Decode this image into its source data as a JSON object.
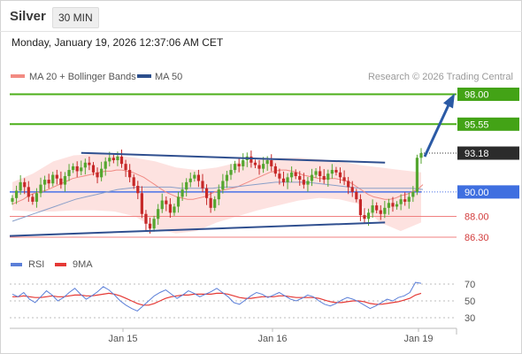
{
  "header": {
    "symbol": "Silver",
    "timeframe": "30 MIN",
    "timestamp": "Monday, January 19, 2026 12:37:06 AM CET"
  },
  "legend": {
    "ma20_label": "MA 20 + Bollinger Bands",
    "ma50_label": "MA 50",
    "ma20_color": "#f28b82",
    "ma50_color": "#2c4f8c",
    "credit": "Research © 2026 Trading Central"
  },
  "rsi_legend": {
    "rsi_label": "RSI",
    "ma_label": "9MA",
    "rsi_color": "#5b7fd8",
    "ma_color": "#e53935"
  },
  "colors": {
    "up_candle": "#55a630",
    "down_candle": "#c62828",
    "resistance": "#4caf1a",
    "support": "#f08080",
    "pivot": "#4a72e8",
    "last_price": "#222222",
    "trendline": "#2f4f8f",
    "arrow": "#2b5aa5",
    "band_fill": "#fde2e0"
  },
  "chart_data": [
    {
      "type": "candlestick",
      "title": "Silver 30 MIN",
      "ylim": [
        84,
        99
      ],
      "x_tick_labels": [
        "Jan 15",
        "Jan 16",
        "Jan 19"
      ],
      "levels": [
        {
          "value": 98.0,
          "label": "98.00",
          "kind": "resistance"
        },
        {
          "value": 95.55,
          "label": "95.55",
          "kind": "resistance"
        },
        {
          "value": 93.18,
          "label": "93.18",
          "kind": "last"
        },
        {
          "value": 90.0,
          "label": "90.00",
          "kind": "pivot"
        },
        {
          "value": 88.0,
          "label": "88.00",
          "kind": "support"
        },
        {
          "value": 86.3,
          "label": "86.30",
          "kind": "support"
        }
      ],
      "close_series": [
        89.5,
        90.1,
        90.8,
        90.4,
        89.6,
        89.2,
        89.9,
        90.6,
        91.0,
        90.7,
        91.4,
        91.1,
        90.6,
        91.3,
        91.8,
        92.1,
        91.7,
        92.0,
        92.4,
        92.2,
        91.6,
        91.2,
        91.9,
        92.5,
        92.8,
        92.6,
        92.9,
        92.3,
        91.8,
        91.2,
        90.5,
        89.9,
        88.2,
        87.4,
        87.0,
        87.8,
        88.6,
        89.3,
        89.0,
        88.3,
        88.8,
        89.6,
        90.2,
        90.8,
        91.1,
        91.4,
        90.9,
        90.3,
        89.5,
        88.7,
        89.4,
        90.2,
        90.9,
        91.4,
        91.8,
        92.3,
        92.1,
        92.6,
        92.9,
        92.4,
        92.2,
        91.9,
        92.3,
        92.6,
        92.1,
        91.5,
        91.1,
        90.8,
        91.2,
        91.6,
        91.3,
        91.0,
        90.6,
        90.9,
        91.4,
        91.7,
        91.3,
        91.0,
        91.5,
        91.8,
        91.6,
        91.2,
        90.9,
        90.4,
        90.0,
        89.4,
        88.1,
        87.8,
        88.3,
        88.9,
        88.5,
        88.2,
        88.7,
        89.1,
        88.8,
        89.0,
        89.4,
        89.2,
        89.6,
        90.0,
        92.8,
        93.18
      ],
      "ma20": [
        89.0,
        89.2,
        89.4,
        89.7,
        89.9,
        90.0,
        90.1,
        90.3,
        90.5,
        90.7,
        90.9,
        91.1,
        91.2,
        91.3,
        91.4,
        91.5,
        91.6,
        91.7,
        91.7,
        91.8,
        91.8,
        91.7,
        91.6,
        91.4,
        91.2,
        90.9,
        90.6,
        90.3,
        90.0,
        89.8,
        89.6,
        89.5,
        89.4,
        89.4,
        89.5,
        89.6,
        89.8,
        90.0,
        90.1,
        90.2,
        90.3,
        90.4,
        90.6,
        90.8,
        91.0,
        91.2,
        91.4,
        91.6,
        91.7,
        91.8,
        91.8,
        91.7,
        91.6,
        91.4,
        91.3,
        91.2,
        91.1,
        91.1,
        91.1,
        91.1,
        91.0,
        90.9,
        90.7,
        90.4,
        90.1,
        89.8,
        89.6,
        89.5,
        89.4,
        89.4,
        89.5,
        89.7,
        89.8,
        90.0,
        90.2,
        90.6
      ],
      "ma50": [
        87.6,
        87.9,
        88.2,
        88.5,
        88.8,
        89.1,
        89.4,
        89.6,
        89.8,
        90.0,
        90.2,
        90.3,
        90.4,
        90.4,
        90.4,
        90.4,
        90.3,
        90.3,
        90.3,
        90.3,
        90.4,
        90.4,
        90.5,
        90.6,
        90.7,
        90.8,
        90.8,
        90.8,
        90.8,
        90.7,
        90.6,
        90.5,
        90.4,
        90.3,
        90.3,
        90.3,
        90.3,
        90.3,
        90.3,
        90.2
      ],
      "band_upper": [
        90.8,
        91.5,
        92.5,
        93.0,
        93.1,
        93.0,
        92.8,
        92.5,
        92.0,
        91.8,
        92.0,
        92.4,
        92.6,
        92.8,
        92.8,
        92.7,
        92.5,
        92.2,
        92.0,
        91.8,
        91.6
      ],
      "band_lower": [
        88.5,
        88.4,
        88.4,
        88.5,
        88.5,
        88.4,
        88.0,
        87.0,
        86.6,
        86.8,
        87.5,
        88.0,
        88.5,
        88.9,
        89.3,
        89.5,
        89.4,
        89.0,
        87.5,
        86.8,
        87.5
      ],
      "trendlines": [
        {
          "name": "upper channel",
          "points": [
            [
              0.16,
              93.2
            ],
            [
              0.84,
              92.4
            ]
          ]
        },
        {
          "name": "lower channel",
          "points": [
            [
              0.0,
              86.4
            ],
            [
              0.84,
              87.5
            ]
          ]
        }
      ],
      "forecast_arrow": {
        "from": 93.18,
        "to": 98.0
      }
    },
    {
      "type": "line",
      "title": "RSI",
      "ylim": [
        20,
        80
      ],
      "y_ticks": [
        70,
        50,
        30
      ],
      "rsi": [
        58,
        55,
        60,
        52,
        48,
        55,
        62,
        57,
        50,
        54,
        60,
        65,
        58,
        52,
        56,
        61,
        67,
        63,
        57,
        50,
        45,
        41,
        38,
        44,
        50,
        56,
        60,
        63,
        58,
        53,
        57,
        62,
        59,
        55,
        58,
        61,
        65,
        60,
        55,
        48,
        46,
        51,
        56,
        60,
        58,
        54,
        57,
        60,
        56,
        52,
        50,
        53,
        57,
        55,
        50,
        46,
        44,
        47,
        51,
        54,
        52,
        49,
        45,
        41,
        44,
        48,
        52,
        50,
        54,
        56,
        60,
        72,
        71
      ],
      "rsi_ma": [
        55,
        55,
        56,
        55,
        54,
        54,
        55,
        56,
        55,
        55,
        56,
        57,
        57,
        56,
        56,
        57,
        58,
        59,
        58,
        56,
        53,
        50,
        47,
        45,
        45,
        47,
        50,
        53,
        55,
        56,
        57,
        57,
        58,
        58,
        58,
        58,
        59,
        59,
        58,
        56,
        54,
        53,
        53,
        54,
        55,
        55,
        55,
        56,
        56,
        55,
        54,
        54,
        54,
        54,
        53,
        51,
        49,
        48,
        48,
        49,
        50,
        50,
        49,
        47,
        46,
        46,
        47,
        48,
        49,
        51,
        53,
        57,
        59
      ]
    }
  ]
}
